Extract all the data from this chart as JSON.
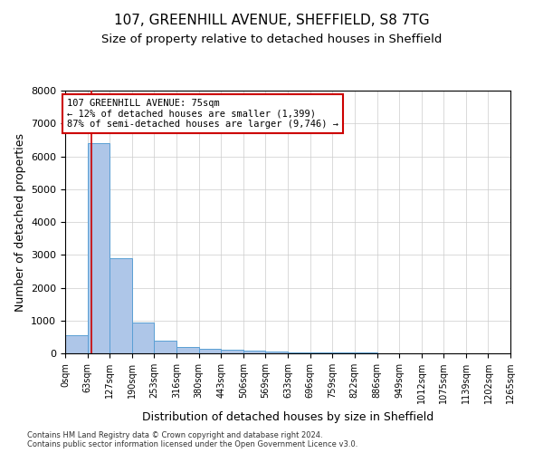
{
  "title_line1": "107, GREENHILL AVENUE, SHEFFIELD, S8 7TG",
  "title_line2": "Size of property relative to detached houses in Sheffield",
  "xlabel": "Distribution of detached houses by size in Sheffield",
  "ylabel": "Number of detached properties",
  "annotation_line1": "107 GREENHILL AVENUE: 75sqm",
  "annotation_line2": "← 12% of detached houses are smaller (1,399)",
  "annotation_line3": "87% of semi-detached houses are larger (9,746) →",
  "footnote1": "Contains HM Land Registry data © Crown copyright and database right 2024.",
  "footnote2": "Contains public sector information licensed under the Open Government Licence v3.0.",
  "bin_edges": [
    0,
    63,
    127,
    190,
    253,
    316,
    380,
    443,
    506,
    569,
    633,
    696,
    759,
    822,
    886,
    949,
    1012,
    1075,
    1139,
    1202,
    1265
  ],
  "bar_heights": [
    550,
    6400,
    2900,
    950,
    380,
    200,
    130,
    100,
    70,
    50,
    35,
    25,
    18,
    14,
    10,
    8,
    6,
    5,
    4,
    3
  ],
  "bar_color": "#aec6e8",
  "bar_edge_color": "#5a9fd4",
  "property_size": 75,
  "property_line_color": "#cc0000",
  "annotation_box_color": "#cc0000",
  "ylim": [
    0,
    8000
  ],
  "yticks": [
    0,
    1000,
    2000,
    3000,
    4000,
    5000,
    6000,
    7000,
    8000
  ],
  "grid_color": "#cccccc",
  "background_color": "#ffffff",
  "title_fontsize": 11,
  "subtitle_fontsize": 9.5,
  "tick_label_fontsize": 7,
  "axis_label_fontsize": 9,
  "annotation_fontsize": 7.5,
  "footnote_fontsize": 6
}
